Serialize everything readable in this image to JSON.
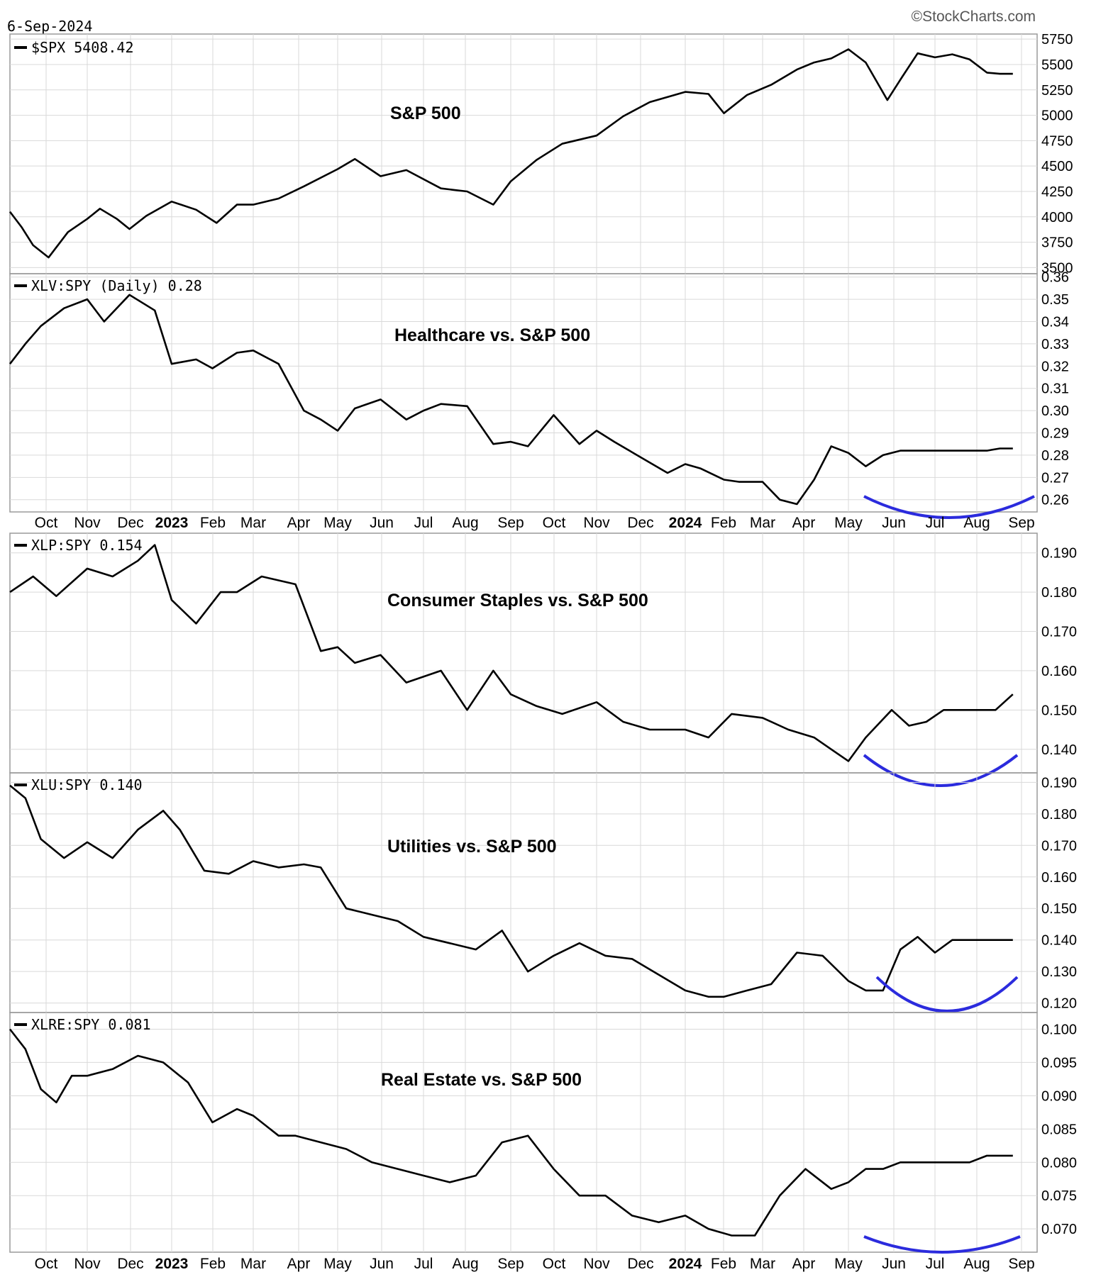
{
  "header": {
    "date": "6-Sep-2024",
    "watermark": "©StockCharts.com"
  },
  "months": [
    "Oct",
    "Nov",
    "Dec",
    "2023",
    "Feb",
    "Mar",
    "Apr",
    "May",
    "Jun",
    "Jul",
    "Aug",
    "Sep",
    "Oct",
    "Nov",
    "Dec",
    "2024",
    "Feb",
    "Mar",
    "Apr",
    "May",
    "Jun",
    "Jul",
    "Aug",
    "Sep"
  ],
  "colors": {
    "line": "#000000",
    "arc": "#2b2bdd",
    "grid": "#d9d9d9",
    "border": "#9a9a9a"
  },
  "chart_data": [
    {
      "type": "line",
      "id": "spx",
      "legend": "$SPX 5408.42",
      "annotation": "S&P 500",
      "yticks": [
        3500,
        3750,
        4000,
        4250,
        4500,
        4750,
        5000,
        5250,
        5500,
        5750
      ],
      "ytick_labels": [
        "3500",
        "3750",
        "4000",
        "4250",
        "4500",
        "4750",
        "5000",
        "5250",
        "5500",
        "5750"
      ],
      "ylim": [
        3440,
        5800
      ],
      "series": [
        {
          "t": [
            0,
            0.015,
            0.03,
            0.05,
            0.075,
            0.1,
            0.115,
            0.135,
            0.15,
            0.17,
            0.2,
            0.23,
            0.255,
            0.28,
            0.3,
            0.33,
            0.36,
            0.4,
            0.42,
            0.45,
            0.48,
            0.52,
            0.55,
            0.58,
            0.6,
            0.63,
            0.66,
            0.7,
            0.73,
            0.76,
            0.8,
            0.83,
            0.85,
            0.88,
            0.91,
            0.94,
            0.96,
            0.98,
            1.0,
            1.02,
            1.045,
            1.06,
            1.08,
            1.1,
            1.12,
            1.14,
            1.16,
            1.175,
            1.19
          ],
          "values": [
            4050,
            3900,
            3720,
            3600,
            3850,
            3980,
            4080,
            3980,
            3880,
            4010,
            4150,
            4070,
            3940,
            4120,
            4120,
            4180,
            4300,
            4470,
            4570,
            4400,
            4460,
            4280,
            4250,
            4120,
            4350,
            4560,
            4720,
            4800,
            4990,
            5130,
            5230,
            5210,
            5020,
            5200,
            5300,
            5450,
            5520,
            5560,
            5650,
            5520,
            5150,
            5350,
            5610,
            5570,
            5600,
            5550,
            5420,
            5408,
            5408
          ]
        }
      ]
    },
    {
      "type": "line",
      "id": "xlv",
      "legend": "XLV:SPY (Daily) 0.28",
      "annotation": "Healthcare vs. S&P 500",
      "yticks": [
        0.26,
        0.27,
        0.28,
        0.29,
        0.3,
        0.31,
        0.32,
        0.33,
        0.34,
        0.35,
        0.36
      ],
      "ytick_labels": [
        "0.26",
        "0.27",
        "0.28",
        "0.29",
        "0.30",
        "0.31",
        "0.32",
        "0.33",
        "0.34",
        "0.35",
        "0.36"
      ],
      "ylim": [
        0.2545,
        0.3615
      ],
      "series": [
        {
          "t": [
            0,
            0.02,
            0.04,
            0.07,
            0.1,
            0.12,
            0.15,
            0.18,
            0.2,
            0.23,
            0.25,
            0.28,
            0.3,
            0.33,
            0.36,
            0.38,
            0.4,
            0.42,
            0.45,
            0.48,
            0.5,
            0.52,
            0.55,
            0.58,
            0.6,
            0.62,
            0.65,
            0.68,
            0.7,
            0.72,
            0.75,
            0.78,
            0.8,
            0.82,
            0.85,
            0.87,
            0.9,
            0.92,
            0.94,
            0.96,
            0.98,
            1.0,
            1.02,
            1.04,
            1.06,
            1.08,
            1.1,
            1.12,
            1.14,
            1.16,
            1.175,
            1.19
          ],
          "values": [
            0.321,
            0.33,
            0.338,
            0.346,
            0.35,
            0.34,
            0.352,
            0.345,
            0.321,
            0.323,
            0.319,
            0.326,
            0.327,
            0.321,
            0.3,
            0.296,
            0.291,
            0.301,
            0.305,
            0.296,
            0.3,
            0.303,
            0.302,
            0.285,
            0.286,
            0.284,
            0.298,
            0.285,
            0.291,
            0.286,
            0.279,
            0.272,
            0.276,
            0.274,
            0.269,
            0.268,
            0.268,
            0.26,
            0.258,
            0.269,
            0.284,
            0.281,
            0.275,
            0.28,
            0.282,
            0.282,
            0.282,
            0.282,
            0.282,
            0.282,
            0.283,
            0.283
          ]
        }
      ],
      "highlight_arc": "May–Sep 2024"
    },
    {
      "type": "line",
      "id": "xlp",
      "legend": "XLP:SPY 0.154",
      "annotation": "Consumer Staples vs. S&P 500",
      "yticks": [
        0.14,
        0.15,
        0.16,
        0.17,
        0.18,
        0.19
      ],
      "ytick_labels": [
        "0.140",
        "0.150",
        "0.160",
        "0.170",
        "0.180",
        "0.190"
      ],
      "ylim": [
        0.134,
        0.195
      ],
      "series": [
        {
          "t": [
            0,
            0.03,
            0.06,
            0.1,
            0.13,
            0.16,
            0.18,
            0.2,
            0.23,
            0.26,
            0.28,
            0.31,
            0.35,
            0.38,
            0.4,
            0.42,
            0.45,
            0.48,
            0.52,
            0.55,
            0.58,
            0.6,
            0.63,
            0.66,
            0.7,
            0.73,
            0.76,
            0.8,
            0.83,
            0.86,
            0.9,
            0.93,
            0.96,
            0.98,
            1.0,
            1.02,
            1.05,
            1.07,
            1.09,
            1.11,
            1.13,
            1.15,
            1.17,
            1.19
          ],
          "values": [
            0.18,
            0.184,
            0.179,
            0.186,
            0.184,
            0.188,
            0.192,
            0.178,
            0.172,
            0.18,
            0.18,
            0.184,
            0.182,
            0.165,
            0.166,
            0.162,
            0.164,
            0.157,
            0.16,
            0.15,
            0.16,
            0.154,
            0.151,
            0.149,
            0.152,
            0.147,
            0.145,
            0.145,
            0.143,
            0.149,
            0.148,
            0.145,
            0.143,
            0.14,
            0.137,
            0.143,
            0.15,
            0.146,
            0.147,
            0.15,
            0.15,
            0.15,
            0.15,
            0.154
          ]
        }
      ],
      "highlight_arc": "May–Sep 2024"
    },
    {
      "type": "line",
      "id": "xlu",
      "legend": "XLU:SPY 0.140",
      "annotation": "Utilities vs. S&P 500",
      "yticks": [
        0.12,
        0.13,
        0.14,
        0.15,
        0.16,
        0.17,
        0.18,
        0.19
      ],
      "ytick_labels": [
        "0.120",
        "0.130",
        "0.140",
        "0.150",
        "0.160",
        "0.170",
        "0.180",
        "0.190"
      ],
      "ylim": [
        0.117,
        0.193
      ],
      "series": [
        {
          "t": [
            0,
            0.02,
            0.04,
            0.07,
            0.1,
            0.13,
            0.16,
            0.19,
            0.21,
            0.24,
            0.27,
            0.3,
            0.33,
            0.36,
            0.38,
            0.41,
            0.44,
            0.47,
            0.5,
            0.53,
            0.56,
            0.59,
            0.62,
            0.65,
            0.68,
            0.71,
            0.74,
            0.77,
            0.8,
            0.83,
            0.85,
            0.88,
            0.91,
            0.94,
            0.97,
            1.0,
            1.02,
            1.04,
            1.06,
            1.08,
            1.1,
            1.12,
            1.14,
            1.16,
            1.18,
            1.19
          ],
          "values": [
            0.189,
            0.185,
            0.172,
            0.166,
            0.171,
            0.166,
            0.175,
            0.181,
            0.175,
            0.162,
            0.161,
            0.165,
            0.163,
            0.164,
            0.163,
            0.15,
            0.148,
            0.146,
            0.141,
            0.139,
            0.137,
            0.143,
            0.13,
            0.135,
            0.139,
            0.135,
            0.134,
            0.129,
            0.124,
            0.122,
            0.122,
            0.124,
            0.126,
            0.136,
            0.135,
            0.127,
            0.124,
            0.124,
            0.137,
            0.141,
            0.136,
            0.14,
            0.14,
            0.14,
            0.14,
            0.14
          ]
        }
      ],
      "highlight_arc": "May–Sep 2024"
    },
    {
      "type": "line",
      "id": "xlre",
      "legend": "XLRE:SPY 0.081",
      "annotation": "Real Estate vs. S&P 500",
      "yticks": [
        0.07,
        0.075,
        0.08,
        0.085,
        0.09,
        0.095,
        0.1
      ],
      "ytick_labels": [
        "0.070",
        "0.075",
        "0.080",
        "0.085",
        "0.090",
        "0.095",
        "0.100"
      ],
      "ylim": [
        0.0665,
        0.1025
      ],
      "series": [
        {
          "t": [
            0,
            0.02,
            0.04,
            0.06,
            0.08,
            0.1,
            0.13,
            0.16,
            0.19,
            0.22,
            0.25,
            0.28,
            0.3,
            0.33,
            0.35,
            0.38,
            0.41,
            0.44,
            0.47,
            0.5,
            0.53,
            0.56,
            0.59,
            0.62,
            0.65,
            0.68,
            0.71,
            0.74,
            0.77,
            0.8,
            0.83,
            0.86,
            0.89,
            0.92,
            0.95,
            0.98,
            1.0,
            1.02,
            1.04,
            1.06,
            1.08,
            1.1,
            1.12,
            1.14,
            1.16,
            1.18,
            1.19
          ],
          "values": [
            0.1,
            0.097,
            0.091,
            0.089,
            0.093,
            0.093,
            0.094,
            0.096,
            0.095,
            0.092,
            0.086,
            0.088,
            0.087,
            0.084,
            0.084,
            0.083,
            0.082,
            0.08,
            0.079,
            0.078,
            0.077,
            0.078,
            0.083,
            0.084,
            0.079,
            0.075,
            0.075,
            0.072,
            0.071,
            0.072,
            0.07,
            0.069,
            0.069,
            0.075,
            0.079,
            0.076,
            0.077,
            0.079,
            0.079,
            0.08,
            0.08,
            0.08,
            0.08,
            0.08,
            0.081,
            0.081,
            0.081
          ]
        }
      ],
      "highlight_arc": "May–Sep 2024"
    }
  ]
}
